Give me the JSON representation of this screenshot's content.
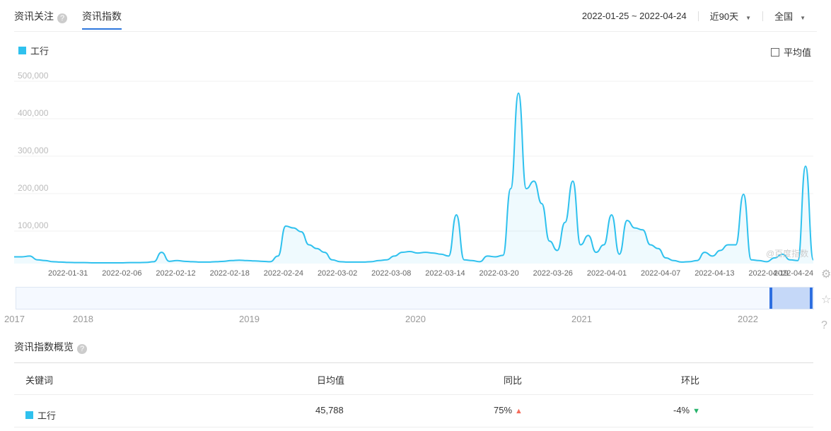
{
  "tabs": {
    "news": "资讯关注",
    "index": "资讯指数"
  },
  "controls": {
    "date_range": "2022-01-25 ~ 2022-04-24",
    "period": "近90天",
    "region": "全国"
  },
  "legend": {
    "series": "工行",
    "average": "平均值"
  },
  "watermark": "@百度指数",
  "chart_data": {
    "type": "area",
    "series": [
      {
        "name": "工行",
        "color": "#2fc1ee"
      }
    ],
    "y_ticks": [
      "500,000",
      "400,000",
      "300,000",
      "200,000",
      "100,000"
    ],
    "ylim": [
      0,
      500000
    ],
    "x_ticks": [
      "2022-01-31",
      "2022-02-06",
      "2022-02-12",
      "2022-02-18",
      "2022-02-24",
      "2022-03-02",
      "2022-03-08",
      "2022-03-14",
      "2022-03-20",
      "2022-03-26",
      "2022-04-01",
      "2022-04-07",
      "2022-04-13",
      "2022-04-19",
      "2022-04-24"
    ],
    "x_start": "2022-01-25",
    "values": [
      18000,
      18000,
      20000,
      10000,
      8000,
      5000,
      4000,
      3000,
      2500,
      2500,
      2000,
      2000,
      2000,
      2000,
      2000,
      2500,
      2500,
      3000,
      5000,
      30000,
      6000,
      8000,
      6000,
      5000,
      4000,
      4000,
      5000,
      6000,
      8000,
      9000,
      8000,
      7000,
      6000,
      5000,
      20000,
      100000,
      95000,
      85000,
      50000,
      40000,
      30000,
      10000,
      5000,
      4000,
      4000,
      4000,
      5000,
      8000,
      10000,
      20000,
      30000,
      32000,
      28000,
      30000,
      28000,
      25000,
      20000,
      130000,
      10000,
      8000,
      5000,
      20000,
      18000,
      22000,
      200000,
      455000,
      200000,
      220000,
      160000,
      60000,
      35000,
      110000,
      220000,
      50000,
      75000,
      30000,
      50000,
      130000,
      25000,
      115000,
      95000,
      90000,
      50000,
      40000,
      15000,
      8000,
      4000,
      5000,
      8000,
      30000,
      20000,
      35000,
      50000,
      50000,
      185000,
      10000,
      8000,
      5000,
      15000,
      25000,
      10000,
      8000,
      260000,
      10000
    ],
    "grid": true
  },
  "brush": {
    "years": [
      "2017",
      "2018",
      "2019",
      "2020",
      "2021",
      "2022"
    ]
  },
  "overview": {
    "title": "资讯指数概览",
    "headers": [
      "关键词",
      "日均值",
      "同比",
      "环比"
    ],
    "rows": [
      {
        "keyword": "工行",
        "daily_avg": "45,788",
        "yoy": "75%",
        "mom": "-4%"
      }
    ]
  }
}
